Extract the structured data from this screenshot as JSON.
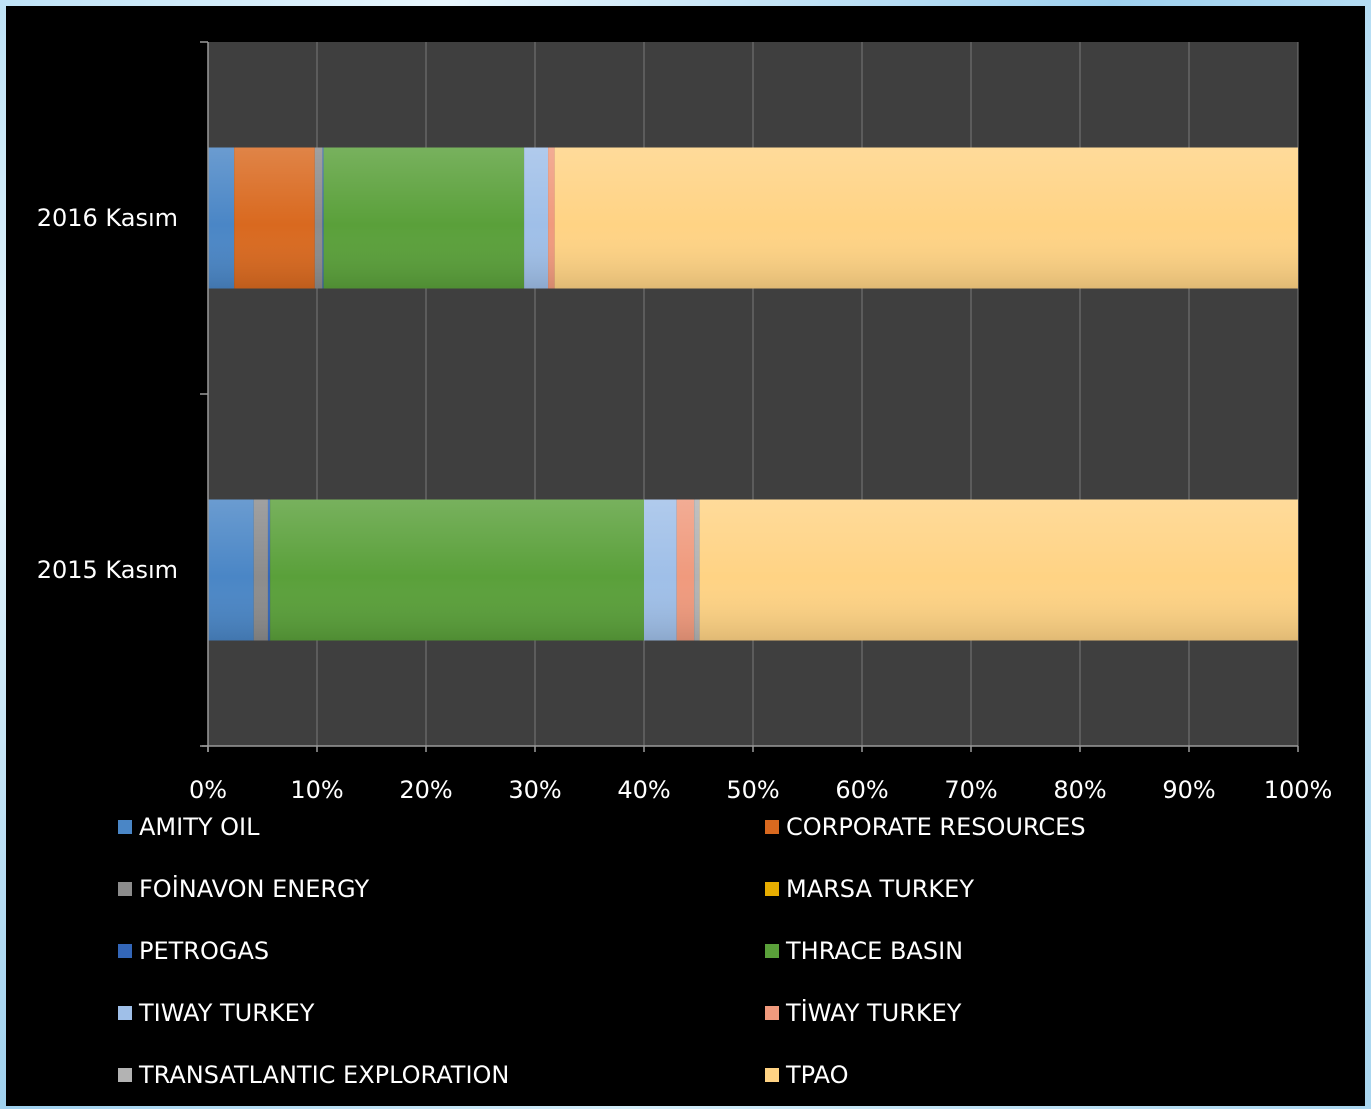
{
  "chart_data": {
    "type": "bar",
    "orientation": "horizontal",
    "stacked": "percent",
    "categories": [
      "2015 Kasım",
      "2016 Kasım"
    ],
    "xlim": [
      0,
      100
    ],
    "xticks": [
      "0%",
      "10%",
      "20%",
      "30%",
      "40%",
      "50%",
      "60%",
      "70%",
      "80%",
      "90%",
      "100%"
    ],
    "grid": true,
    "legend_position": "bottom",
    "series": [
      {
        "name": "AMITY OIL",
        "color": "#4a86c6",
        "values": [
          4.2,
          2.4
        ]
      },
      {
        "name": "CORPORATE RESOURCES",
        "color": "#d9691f",
        "values": [
          0,
          7.4
        ]
      },
      {
        "name": "FOİNAVON ENERGY",
        "color": "#8c8c8c",
        "values": [
          1.3,
          0.7
        ]
      },
      {
        "name": "MARSA TURKEY",
        "color": "#e7ad00",
        "values": [
          0,
          0
        ]
      },
      {
        "name": "PETROGAS",
        "color": "#3366b8",
        "values": [
          0.2,
          0.1
        ]
      },
      {
        "name": "THRACE BASIN",
        "color": "#5aa03a",
        "values": [
          34.3,
          18.4
        ]
      },
      {
        "name": "TIWAY TURKEY",
        "color": "#9fbfe8",
        "values": [
          3.0,
          2.2
        ]
      },
      {
        "name": "TİWAY TURKEY",
        "color": "#f09a7d",
        "values": [
          1.6,
          0.6
        ]
      },
      {
        "name": "TRANSATLANTIC EXPLORATION",
        "color": "#b3b3b3",
        "values": [
          0.5,
          0
        ]
      },
      {
        "name": "TPAO",
        "color": "#ffd384",
        "values": [
          54.9,
          68.2
        ]
      }
    ]
  }
}
